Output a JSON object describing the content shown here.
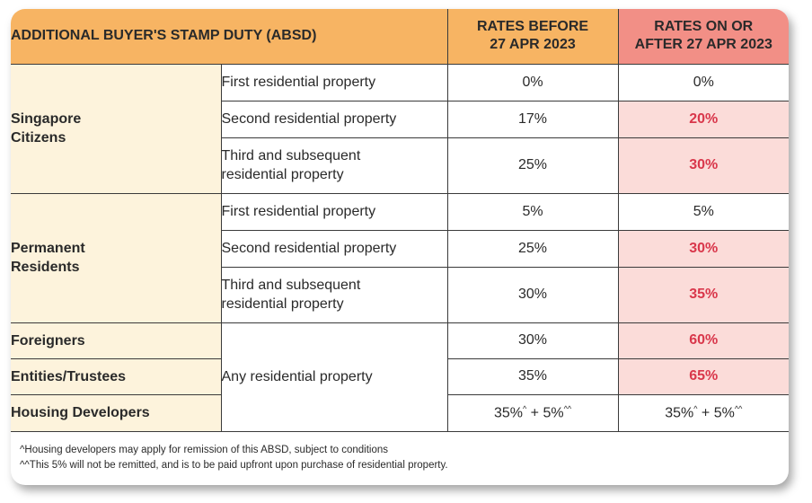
{
  "header": {
    "title": "ADDITIONAL BUYER'S STAMP DUTY (ABSD)",
    "before_line1": "RATES BEFORE",
    "before_line2": "27 APR 2023",
    "after_line1": "RATES ON OR",
    "after_line2": "AFTER 27 APR 2023"
  },
  "groups": {
    "citizens": {
      "label_line1": "Singapore",
      "label_line2": "Citizens",
      "rows": [
        {
          "desc_line1": "First residential property",
          "desc_line2": "",
          "before": "0%",
          "after": "0%"
        },
        {
          "desc_line1": "Second residential property",
          "desc_line2": "",
          "before": "17%",
          "after": "20%"
        },
        {
          "desc_line1": "Third and subsequent",
          "desc_line2": "residential property",
          "before": "25%",
          "after": "30%"
        }
      ]
    },
    "pr": {
      "label_line1": "Permanent",
      "label_line2": "Residents",
      "rows": [
        {
          "desc_line1": "First residential property",
          "desc_line2": "",
          "before": "5%",
          "after": "5%"
        },
        {
          "desc_line1": "Second residential property",
          "desc_line2": "",
          "before": "25%",
          "after": "30%"
        },
        {
          "desc_line1": "Third and subsequent",
          "desc_line2": "residential property",
          "before": "30%",
          "after": "35%"
        }
      ]
    },
    "foreigners": {
      "label": "Foreigners",
      "before": "30%",
      "after": "60%"
    },
    "entities": {
      "label": "Entities/Trustees",
      "before": "35%",
      "after": "65%"
    },
    "developers": {
      "label": "Housing Developers",
      "before_base": "35%",
      "before_sup1": "^",
      "before_plus": " + 5%",
      "before_sup2": "^^",
      "after_base": "35%",
      "after_sup1": "^",
      "after_plus": " + 5%",
      "after_sup2": "^^"
    },
    "shared_desc": "Any residential property"
  },
  "notes": {
    "note1": "^Housing developers may apply for remission of this ABSD, subject to conditions",
    "note2": "^^This 5% will not be remitted, and is to be paid upfront upon purchase of residential property."
  },
  "colors": {
    "header_orange": "#f7b463",
    "header_red": "#f28f86",
    "group_cream": "#fdf3dc",
    "highlight_bg": "#fbdcd9",
    "highlight_text": "#d9374b"
  }
}
